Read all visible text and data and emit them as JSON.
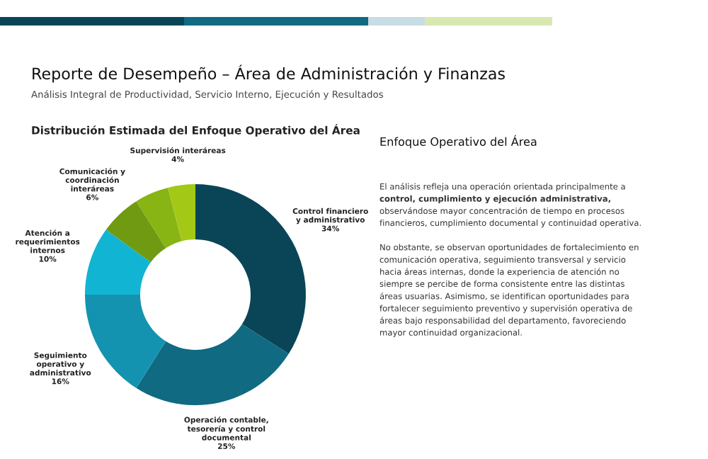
{
  "chart_data": [
    {
      "type": "donut",
      "title": "Reporte de Desempeño – Área de Administración y Finanzas",
      "subtitle": "Análisis Integral de Productividad, Servicio Interno, Ejecución y Resultados",
      "annotations": [
        "Distribución Estimada del Enfoque Operativo del Área"
      ],
      "categories": [
        "Control financiero\ny administrativo",
        "Operación contable,\ntesorería y control\ndocumental",
        "Seguimiento\noperativo y\nadministrativo",
        "Atención a\nrequerimientos\ninternos",
        "Comunicación y\ncoordinación\ninteráreas",
        null,
        "Supervisión interáreas"
      ],
      "values": [
        34,
        25,
        16,
        10,
        6,
        5,
        4
      ],
      "value_labels": [
        "34%",
        "25%",
        "16%",
        "10%",
        "6%",
        null,
        "4%"
      ],
      "colors": [
        "#0a4557",
        "#0f6a82",
        "#1493b0",
        "#12b4d3",
        "#6f9a12",
        "#88b414",
        "#a3c916"
      ]
    },
    {
      "type": "other",
      "title": "Enfoque Operativo del Área",
      "annotations": [
        "El análisis refleja una operación orientada principalmente a",
        "control, cumplimiento y ejecución administrativa,",
        "observándose mayor concentración de tiempo en procesos",
        "financieros, cumplimiento documental y continuidad operativa.",
        "No obstante, se observan oportunidades de fortalecimiento en",
        "comunicación operativa, seguimiento transversal y servicio",
        "hacia áreas internas, donde la experiencia de atención no",
        "siempre se percibe de forma consistente entre las distintas",
        "áreas usuarias. Asimismo, se identifican oportunidades para",
        "fortalecer seguimiento preventivo y supervisión operativa de",
        "áreas bajo responsabilidad del departamento, favoreciendo",
        "mayor continuidad organizacional."
      ]
    }
  ]
}
